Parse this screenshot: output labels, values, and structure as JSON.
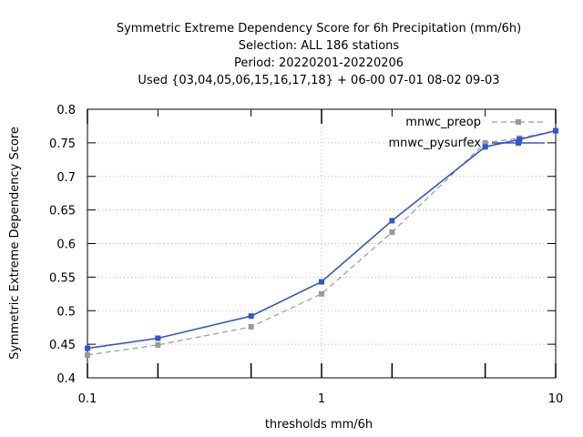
{
  "chart_data": {
    "type": "line",
    "title_lines": [
      "Symmetric Extreme Dependency Score  for 6h Precipitation (mm/6h)",
      "Selection: ALL    186 stations",
      "Period: 20220201-20220206",
      "Used {03,04,05,06,15,16,17,18} + 06-00 07-01 08-02 09-03"
    ],
    "xlabel": "thresholds mm/6h",
    "ylabel": "Symmetric Extreme Dependency Score",
    "x_scale": "log",
    "xlim": [
      0.1,
      10
    ],
    "ylim": [
      0.4,
      0.8
    ],
    "x_ticks": [
      0.1,
      1,
      10
    ],
    "x_tick_labels": [
      "0.1",
      "1",
      "10"
    ],
    "x_minor_ticks": [
      0.2,
      0.5,
      2,
      5
    ],
    "y_ticks": [
      0.4,
      0.45,
      0.5,
      0.55,
      0.6,
      0.65,
      0.7,
      0.75,
      0.8
    ],
    "y_tick_labels": [
      "0.4",
      "0.45",
      "0.5",
      "0.55",
      "0.6",
      "0.65",
      "0.7",
      "0.75",
      "0.8"
    ],
    "grid": true,
    "legend_position": "top-right",
    "series": [
      {
        "name": "mnwc_preop",
        "color": "#999999",
        "dash": true,
        "x": [
          0.1,
          0.2,
          0.5,
          1,
          2,
          5,
          7,
          10
        ],
        "y": [
          0.434,
          0.449,
          0.476,
          0.525,
          0.617,
          0.75,
          0.757,
          0.768
        ]
      },
      {
        "name": "mnwc_pysurfex",
        "color": "#3355cc",
        "dash": false,
        "x": [
          0.1,
          0.2,
          0.5,
          1,
          2,
          5,
          7,
          10
        ],
        "y": [
          0.444,
          0.459,
          0.492,
          0.543,
          0.634,
          0.744,
          0.755,
          0.768
        ]
      }
    ]
  }
}
